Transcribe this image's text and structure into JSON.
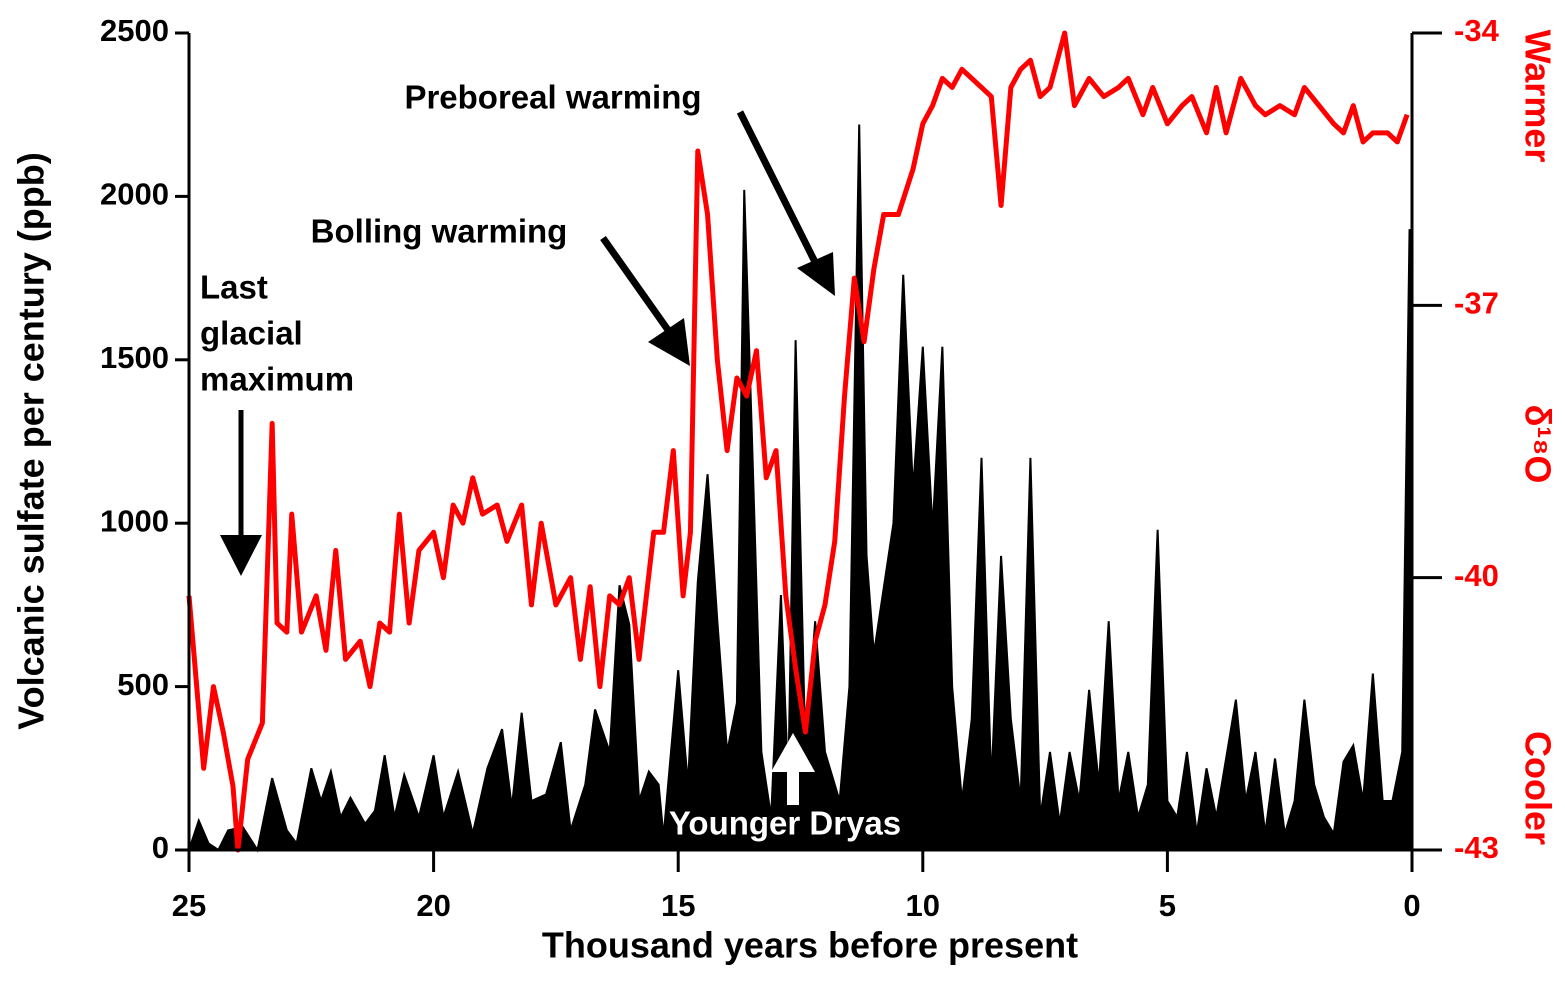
{
  "chart_data": {
    "type": "line",
    "xlabel": "Thousand years before present",
    "ylabel": "Volcanic sulfate per century (ppb)",
    "y2label_top": "Warmer",
    "y2label": "δ¹⁸O",
    "y2label_bottom": "Cooler",
    "xlim": [
      25,
      0
    ],
    "xticks": [
      25,
      20,
      15,
      10,
      5,
      0
    ],
    "ylim": [
      0,
      2500
    ],
    "yticks": [
      0,
      500,
      1000,
      1500,
      2000,
      2500
    ],
    "y2lim": [
      -43,
      -34
    ],
    "y2ticks": [
      -43,
      -40,
      -37,
      -34
    ],
    "annotations": {
      "last_glacial": [
        "Last",
        "glacial",
        "maximum"
      ],
      "bolling": "Bolling warming",
      "preboreal": "Preboreal warming",
      "younger_dryas": "Younger Dryas"
    },
    "series": [
      {
        "type": "area",
        "color": "#000000",
        "x": [
          25.0,
          24.8,
          24.6,
          24.4,
          24.2,
          23.9,
          23.6,
          23.3,
          23.0,
          22.8,
          22.5,
          22.3,
          22.1,
          21.9,
          21.7,
          21.4,
          21.2,
          21.0,
          20.8,
          20.6,
          20.3,
          20.0,
          19.8,
          19.5,
          19.2,
          18.9,
          18.6,
          18.4,
          18.2,
          18.0,
          17.7,
          17.4,
          17.2,
          16.9,
          16.7,
          16.4,
          16.2,
          16.0,
          15.8,
          15.6,
          15.4,
          15.3,
          15.0,
          14.8,
          14.6,
          14.4,
          14.2,
          14.0,
          13.8,
          13.65,
          13.5,
          13.3,
          13.1,
          12.9,
          12.75,
          12.6,
          12.4,
          12.2,
          12.0,
          11.7,
          11.5,
          11.3,
          11.15,
          11.0,
          10.8,
          10.6,
          10.4,
          10.2,
          10.0,
          9.8,
          9.6,
          9.4,
          9.2,
          9.0,
          8.8,
          8.6,
          8.4,
          8.2,
          8.0,
          7.8,
          7.6,
          7.4,
          7.2,
          7.0,
          6.8,
          6.6,
          6.4,
          6.2,
          6.0,
          5.8,
          5.6,
          5.4,
          5.2,
          5.0,
          4.8,
          4.6,
          4.4,
          4.2,
          4.0,
          3.8,
          3.6,
          3.4,
          3.2,
          3.0,
          2.8,
          2.6,
          2.4,
          2.2,
          2.0,
          1.8,
          1.6,
          1.4,
          1.2,
          1.0,
          0.8,
          0.6,
          0.4,
          0.2,
          0.05,
          0.0
        ],
        "values": [
          0,
          90,
          20,
          0,
          60,
          70,
          0,
          220,
          60,
          20,
          250,
          150,
          240,
          100,
          160,
          80,
          120,
          290,
          100,
          230,
          100,
          290,
          100,
          240,
          50,
          250,
          370,
          130,
          420,
          150,
          170,
          330,
          60,
          200,
          430,
          300,
          810,
          690,
          150,
          240,
          200,
          40,
          550,
          200,
          820,
          1150,
          700,
          300,
          450,
          2020,
          1300,
          300,
          100,
          780,
          200,
          1560,
          300,
          700,
          300,
          150,
          500,
          2220,
          900,
          600,
          800,
          1000,
          1760,
          1100,
          1540,
          980,
          1540,
          500,
          150,
          400,
          1200,
          200,
          900,
          400,
          150,
          1200,
          100,
          300,
          80,
          300,
          150,
          490,
          200,
          700,
          150,
          300,
          100,
          200,
          980,
          150,
          100,
          300,
          50,
          250,
          100,
          280,
          460,
          150,
          300,
          50,
          280,
          50,
          150,
          460,
          200,
          100,
          50,
          270,
          320,
          150,
          540,
          150,
          150,
          300,
          1900,
          0
        ]
      },
      {
        "type": "line",
        "color": "#ff0000",
        "axis": "y2",
        "x": [
          25.0,
          24.7,
          24.5,
          24.3,
          24.1,
          24.0,
          23.8,
          23.5,
          23.3,
          23.2,
          23.0,
          22.9,
          22.7,
          22.4,
          22.2,
          22.0,
          21.8,
          21.5,
          21.3,
          21.1,
          20.9,
          20.7,
          20.5,
          20.3,
          20.0,
          19.8,
          19.6,
          19.4,
          19.2,
          19.0,
          18.7,
          18.5,
          18.2,
          18.0,
          17.8,
          17.5,
          17.2,
          17.0,
          16.8,
          16.6,
          16.4,
          16.2,
          16.0,
          15.8,
          15.5,
          15.3,
          15.1,
          14.9,
          14.75,
          14.6,
          14.4,
          14.2,
          14.0,
          13.8,
          13.6,
          13.4,
          13.2,
          13.0,
          12.8,
          12.6,
          12.4,
          12.2,
          12.0,
          11.8,
          11.6,
          11.4,
          11.2,
          11.0,
          10.8,
          10.5,
          10.2,
          10.0,
          9.8,
          9.6,
          9.4,
          9.2,
          9.0,
          8.8,
          8.6,
          8.4,
          8.2,
          8.0,
          7.8,
          7.6,
          7.4,
          7.1,
          6.9,
          6.6,
          6.3,
          6.0,
          5.8,
          5.5,
          5.3,
          5.0,
          4.7,
          4.5,
          4.2,
          4.0,
          3.8,
          3.5,
          3.2,
          3.0,
          2.7,
          2.4,
          2.2,
          1.9,
          1.6,
          1.4,
          1.2,
          1.0,
          0.8,
          0.5,
          0.3,
          0.1
        ],
        "values": [
          -40.2,
          -42.1,
          -41.2,
          -41.7,
          -42.3,
          -43.0,
          -42.0,
          -41.6,
          -38.3,
          -40.5,
          -40.6,
          -39.3,
          -40.6,
          -40.2,
          -40.8,
          -39.7,
          -40.9,
          -40.7,
          -41.2,
          -40.5,
          -40.6,
          -39.3,
          -40.5,
          -39.7,
          -39.5,
          -40.0,
          -39.2,
          -39.4,
          -38.9,
          -39.3,
          -39.2,
          -39.6,
          -39.2,
          -40.3,
          -39.4,
          -40.3,
          -40.0,
          -40.9,
          -40.1,
          -41.2,
          -40.2,
          -40.3,
          -40.0,
          -40.9,
          -39.5,
          -39.5,
          -38.6,
          -40.2,
          -39.5,
          -35.3,
          -36.0,
          -37.6,
          -38.6,
          -37.8,
          -38.0,
          -37.5,
          -38.9,
          -38.6,
          -40.2,
          -41.0,
          -41.7,
          -40.7,
          -40.3,
          -39.6,
          -38.0,
          -36.7,
          -37.4,
          -36.6,
          -36.0,
          -36.0,
          -35.5,
          -35.0,
          -34.8,
          -34.5,
          -34.6,
          -34.4,
          -34.5,
          -34.6,
          -34.7,
          -35.9,
          -34.6,
          -34.4,
          -34.3,
          -34.7,
          -34.6,
          -34.0,
          -34.8,
          -34.5,
          -34.7,
          -34.6,
          -34.5,
          -34.9,
          -34.6,
          -35.0,
          -34.8,
          -34.7,
          -35.1,
          -34.6,
          -35.1,
          -34.5,
          -34.8,
          -34.9,
          -34.8,
          -34.9,
          -34.6,
          -34.8,
          -35.0,
          -35.1,
          -34.8,
          -35.2,
          -35.1,
          -35.1,
          -35.2,
          -34.9
        ]
      }
    ]
  }
}
